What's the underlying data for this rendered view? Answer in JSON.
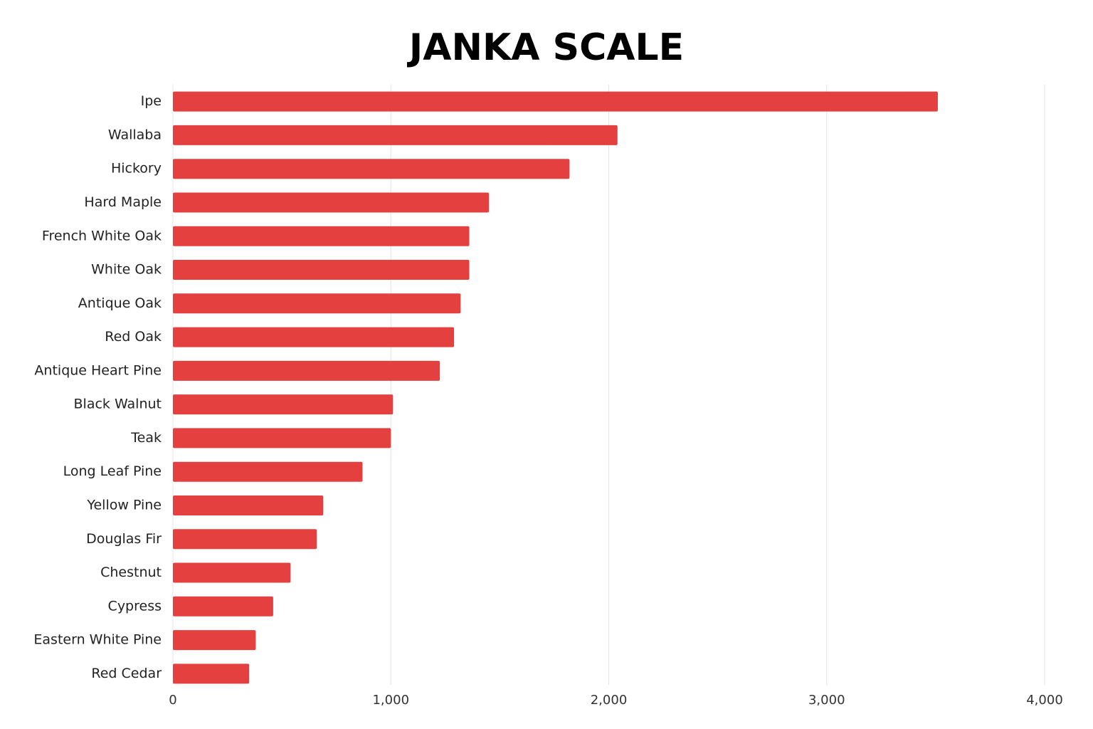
{
  "chart_data": {
    "type": "bar",
    "orientation": "horizontal",
    "title": "JANKA SCALE",
    "categories": [
      "Ipe",
      "Wallaba",
      "Hickory",
      "Hard Maple",
      "French White Oak",
      "White Oak",
      "Antique Oak",
      "Red Oak",
      "Antique Heart Pine",
      "Black Walnut",
      "Teak",
      "Long Leaf Pine",
      "Yellow Pine",
      "Douglas Fir",
      "Chestnut",
      "Cypress",
      "Eastern White Pine",
      "Red Cedar"
    ],
    "values": [
      3510,
      2040,
      1820,
      1450,
      1360,
      1360,
      1320,
      1290,
      1225,
      1010,
      1000,
      870,
      690,
      660,
      540,
      460,
      380,
      350
    ],
    "color": "#e3403f",
    "xlim": [
      0,
      4000
    ],
    "xticks": [
      0,
      {
        "value": 1000,
        "label": "1,000"
      },
      {
        "value": 2000,
        "label": "2,000"
      },
      {
        "value": 3000,
        "label": "3,000"
      },
      {
        "value": 4000,
        "label": "4,000"
      }
    ],
    "grid": true
  }
}
